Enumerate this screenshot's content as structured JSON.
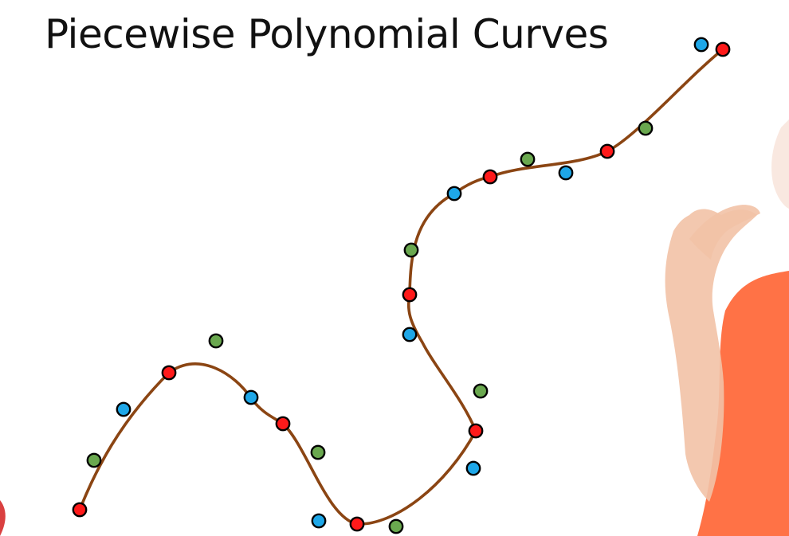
{
  "slide": {
    "title": "Piecewise Polynomial Curves"
  },
  "diagram": {
    "curve_color": "#8B4513",
    "point_colors": {
      "knot": "#ff1a1a",
      "control_a": "#1ea7e8",
      "control_b": "#6aa84f"
    },
    "outline_color": "#000000"
  },
  "presenter": {
    "shirt_color": "#ff6a3c",
    "skin_color": "#f2c2a6"
  }
}
